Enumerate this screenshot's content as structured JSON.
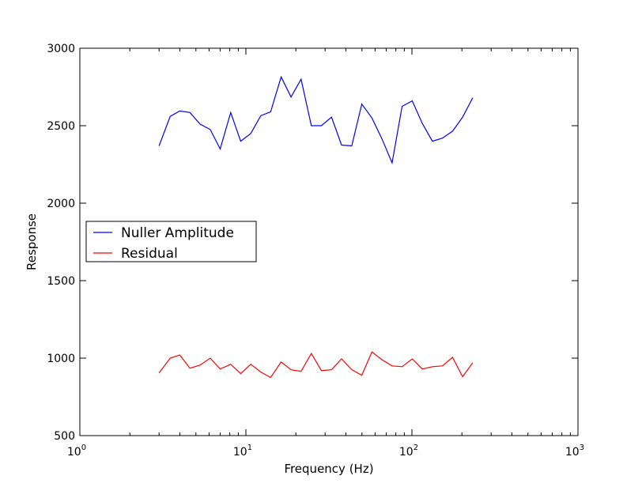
{
  "chart_data": {
    "type": "line",
    "title": "",
    "xlabel": "Frequency (Hz)",
    "ylabel": "Response",
    "xscale": "log",
    "xlim": [
      1,
      1000
    ],
    "ylim": [
      500,
      3000
    ],
    "grid": false,
    "legend_position": "center-left",
    "x_ticks": [
      {
        "value": 1,
        "base": "10",
        "exp": "0"
      },
      {
        "value": 10,
        "base": "10",
        "exp": "1"
      },
      {
        "value": 100,
        "base": "10",
        "exp": "2"
      },
      {
        "value": 1000,
        "base": "10",
        "exp": "3"
      }
    ],
    "y_ticks": [
      {
        "value": 500,
        "label": "500"
      },
      {
        "value": 1000,
        "label": "1000"
      },
      {
        "value": 1500,
        "label": "1500"
      },
      {
        "value": 2000,
        "label": "2000"
      },
      {
        "value": 2500,
        "label": "2500"
      },
      {
        "value": 3000,
        "label": "3000"
      }
    ],
    "x": [
      3.0,
      3.5,
      4.0,
      4.6,
      5.3,
      6.1,
      7.0,
      8.1,
      9.3,
      10.7,
      12.3,
      14.1,
      16.3,
      18.7,
      21.5,
      24.8,
      28.5,
      32.8,
      37.7,
      43.4,
      49.9,
      57.4,
      66.0,
      75.9,
      87.3,
      100.4,
      115.5,
      132.8,
      152.7,
      175.6,
      202.0,
      232.3
    ],
    "series": [
      {
        "name": "Nuller Amplitude",
        "color": "#0000ff",
        "values": [
          2370,
          2560,
          2595,
          2585,
          2510,
          2475,
          2350,
          2585,
          2400,
          2450,
          2565,
          2590,
          2815,
          2685,
          2800,
          2500,
          2500,
          2555,
          2375,
          2370,
          2640,
          2550,
          2415,
          2260,
          2625,
          2660,
          2515,
          2400,
          2420,
          2465,
          2555,
          2680
        ]
      },
      {
        "name": "Residual",
        "color": "#ff0000",
        "values": [
          905,
          1000,
          1020,
          935,
          955,
          1000,
          930,
          960,
          900,
          960,
          910,
          875,
          975,
          925,
          915,
          1030,
          920,
          925,
          995,
          925,
          890,
          1040,
          990,
          950,
          945,
          995,
          930,
          945,
          950,
          1005,
          880,
          970
        ]
      }
    ]
  }
}
